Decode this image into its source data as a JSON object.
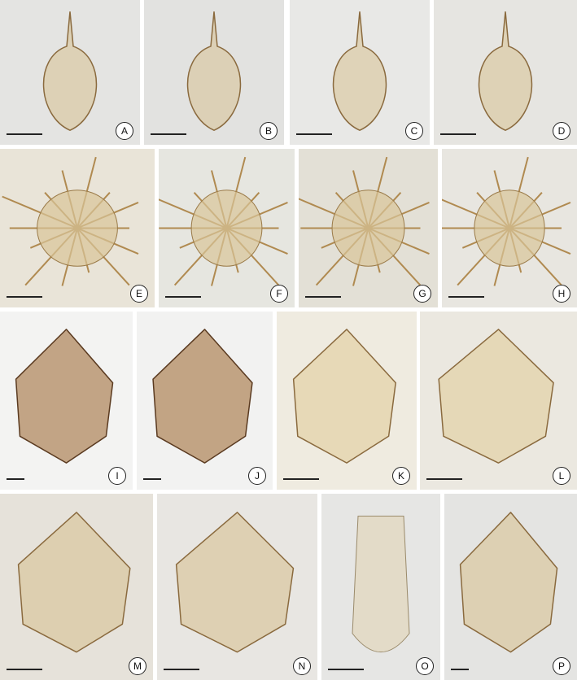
{
  "plate": {
    "panels": [
      {
        "label": "A"
      },
      {
        "label": "B"
      },
      {
        "label": "C"
      },
      {
        "label": "D"
      },
      {
        "label": "E"
      },
      {
        "label": "F"
      },
      {
        "label": "G"
      },
      {
        "label": "H"
      },
      {
        "label": "I"
      },
      {
        "label": "J"
      },
      {
        "label": "K"
      },
      {
        "label": "L"
      },
      {
        "label": "M"
      },
      {
        "label": "N"
      },
      {
        "label": "O"
      },
      {
        "label": "P"
      }
    ]
  }
}
